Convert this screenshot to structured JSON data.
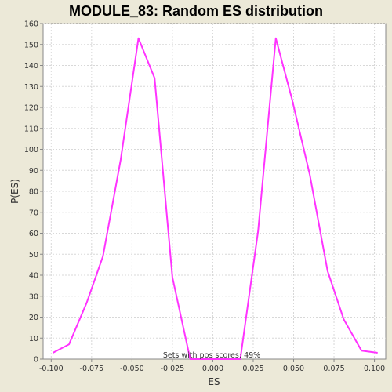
{
  "chart_data": {
    "type": "line",
    "title": "MODULE_83: Random ES distribution",
    "xlabel": "ES",
    "ylabel": "P(ES)",
    "xlim": [
      -0.105,
      0.107
    ],
    "ylim": [
      0,
      160
    ],
    "x_ticks": [
      -0.1,
      -0.075,
      -0.05,
      -0.025,
      0.0,
      0.025,
      0.05,
      0.075,
      0.1
    ],
    "x_tick_labels": [
      "-0.100",
      "-0.075",
      "-0.050",
      "-0.025",
      "0.000",
      "0.025",
      "0.050",
      "0.075",
      "0.100"
    ],
    "y_ticks": [
      0,
      10,
      20,
      30,
      40,
      50,
      60,
      70,
      80,
      90,
      100,
      110,
      120,
      130,
      140,
      150,
      160
    ],
    "grid": true,
    "annotation": "Sets with pos scores: 49%",
    "series": [
      {
        "color": "#FF33FF",
        "x": [
          -0.099,
          -0.089,
          -0.078,
          -0.068,
          -0.057,
          -0.046,
          -0.036,
          -0.025,
          -0.014,
          -0.004,
          0.007,
          0.017,
          0.028,
          0.039,
          0.049,
          0.06,
          0.071,
          0.081,
          0.092,
          0.102
        ],
        "y": [
          3,
          7,
          27,
          49,
          95,
          153,
          134,
          39,
          0,
          0,
          0,
          0,
          61,
          153,
          124,
          88,
          42,
          19,
          4,
          3
        ]
      }
    ]
  },
  "colors": {
    "background": "#ECE9D8",
    "plot_background": "#FFFFFF",
    "grid": "#D8D8D8",
    "axis": "#888888",
    "series": "#FF33FF"
  }
}
